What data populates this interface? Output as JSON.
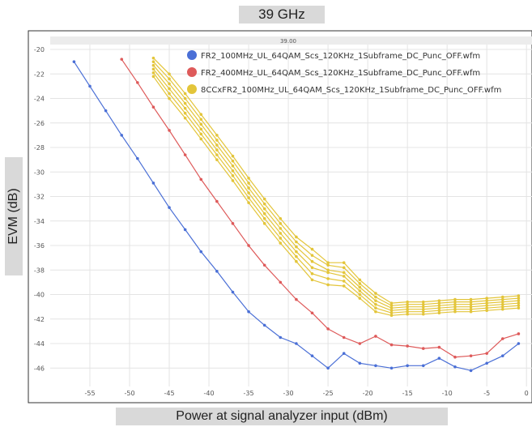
{
  "header": {
    "frequency_label": "39 GHz"
  },
  "chart_data": {
    "type": "line",
    "title": "39.00",
    "xlabel": "Power at signal analyzer input (dBm)",
    "ylabel": "EVM (dB)",
    "xlim": [
      -60,
      1
    ],
    "ylim": [
      -47.5,
      -19.6
    ],
    "xticks": [
      -55,
      -50,
      -45,
      -40,
      -35,
      -30,
      -25,
      -20,
      -15,
      -10,
      -5,
      0
    ],
    "yticks": [
      -20,
      -22,
      -24,
      -26,
      -28,
      -30,
      -32,
      -34,
      -36,
      -38,
      -40,
      -42,
      -44,
      -46
    ],
    "grid": true,
    "legend_position": "top-right",
    "series": [
      {
        "name": "FR2_100MHz_UL_64QAM_Scs_120KHz_1Subframe_DC_Punc_OFF.wfm",
        "color": "#4a6fd6",
        "x": [
          -57,
          -55,
          -53,
          -51,
          -49,
          -47,
          -45,
          -43,
          -41,
          -39,
          -37,
          -35,
          -33,
          -31,
          -29,
          -27,
          -25,
          -23,
          -21,
          -19,
          -17,
          -15,
          -13,
          -11,
          -9,
          -7,
          -5,
          -3,
          -1
        ],
        "y": [
          -21.0,
          -23.0,
          -25.0,
          -27.0,
          -28.9,
          -30.9,
          -32.9,
          -34.7,
          -36.5,
          -38.1,
          -39.8,
          -41.4,
          -42.5,
          -43.5,
          -44.0,
          -45.0,
          -46.0,
          -44.8,
          -45.6,
          -45.8,
          -46.0,
          -45.8,
          -45.8,
          -45.2,
          -45.9,
          -46.2,
          -45.6,
          -45.0,
          -44.0
        ]
      },
      {
        "name": "FR2_400MHz_UL_64QAM_Scs_120KHz_1Subframe_DC_Punc_OFF.wfm",
        "color": "#de5a5a",
        "x": [
          -51,
          -49,
          -47,
          -45,
          -43,
          -41,
          -39,
          -37,
          -35,
          -33,
          -31,
          -29,
          -27,
          -25,
          -23,
          -21,
          -19,
          -17,
          -15,
          -13,
          -11,
          -9,
          -7,
          -5,
          -3,
          -1
        ],
        "y": [
          -20.8,
          -22.7,
          -24.7,
          -26.6,
          -28.6,
          -30.6,
          -32.4,
          -34.2,
          -36.0,
          -37.6,
          -39.0,
          -40.4,
          -41.5,
          -42.8,
          -43.5,
          -44.0,
          -43.4,
          -44.1,
          -44.2,
          -44.4,
          -44.3,
          -45.1,
          -45.0,
          -44.8,
          -43.6,
          -43.2
        ]
      },
      {
        "name": "8CCxFR2_100MHz_UL_64QAM_Scs_120KHz_1Subframe_DC_Punc_OFF.wfm",
        "color": "#e3c53a",
        "x": [
          -47,
          -45,
          -43,
          -41,
          -39,
          -37,
          -35,
          -33,
          -31,
          -29,
          -27,
          -25,
          -23,
          -21,
          -19,
          -17,
          -15,
          -13,
          -11,
          -9,
          -7,
          -5,
          -3,
          -1
        ],
        "curves": [
          [
            -20.7,
            -22.0,
            -23.6,
            -25.3,
            -27.0,
            -28.7,
            -30.5,
            -32.2,
            -33.8,
            -35.3,
            -36.3,
            -37.4,
            -37.4,
            -38.8,
            -39.9,
            -40.7,
            -40.6,
            -40.6,
            -40.5,
            -40.4,
            -40.4,
            -40.3,
            -40.2,
            -40.1
          ],
          [
            -21.0,
            -22.4,
            -24.0,
            -25.7,
            -27.4,
            -29.1,
            -30.9,
            -32.6,
            -34.2,
            -35.7,
            -36.8,
            -37.6,
            -37.8,
            -39.1,
            -40.2,
            -40.9,
            -40.8,
            -40.8,
            -40.7,
            -40.6,
            -40.6,
            -40.5,
            -40.4,
            -40.3
          ],
          [
            -21.3,
            -22.8,
            -24.4,
            -26.1,
            -27.8,
            -29.5,
            -31.3,
            -33.0,
            -34.6,
            -36.1,
            -37.3,
            -38.0,
            -38.2,
            -39.4,
            -40.5,
            -41.1,
            -41.0,
            -41.0,
            -40.9,
            -40.8,
            -40.8,
            -40.7,
            -40.6,
            -40.5
          ],
          [
            -21.6,
            -23.2,
            -24.8,
            -26.5,
            -28.2,
            -29.9,
            -31.7,
            -33.4,
            -35.0,
            -36.5,
            -37.8,
            -38.2,
            -38.5,
            -39.7,
            -40.8,
            -41.3,
            -41.2,
            -41.2,
            -41.1,
            -41.0,
            -41.0,
            -40.9,
            -40.8,
            -40.7
          ],
          [
            -21.9,
            -23.6,
            -25.2,
            -26.9,
            -28.6,
            -30.3,
            -32.1,
            -33.8,
            -35.4,
            -36.9,
            -38.3,
            -38.7,
            -38.9,
            -40.0,
            -41.1,
            -41.5,
            -41.4,
            -41.4,
            -41.3,
            -41.2,
            -41.2,
            -41.1,
            -41.0,
            -40.9
          ],
          [
            -22.2,
            -24.0,
            -25.6,
            -27.3,
            -29.0,
            -30.7,
            -32.5,
            -34.2,
            -35.8,
            -37.3,
            -38.8,
            -39.2,
            -39.3,
            -40.3,
            -41.4,
            -41.7,
            -41.6,
            -41.6,
            -41.5,
            -41.4,
            -41.4,
            -41.3,
            -41.2,
            -41.1
          ]
        ]
      }
    ]
  }
}
